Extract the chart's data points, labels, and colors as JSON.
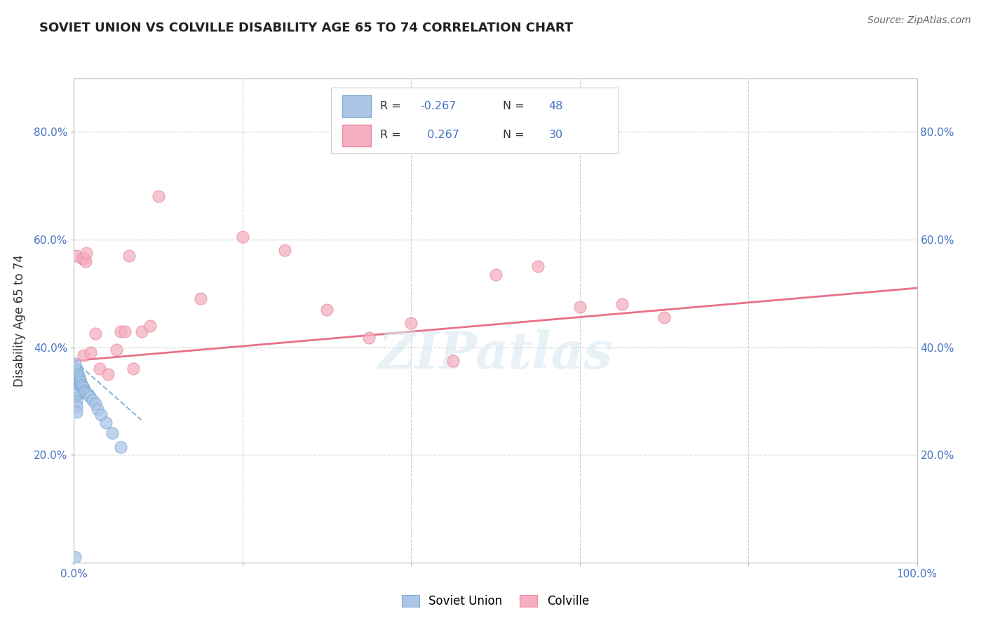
{
  "title": "SOVIET UNION VS COLVILLE DISABILITY AGE 65 TO 74 CORRELATION CHART",
  "source": "Source: ZipAtlas.com",
  "ylabel": "Disability Age 65 to 74",
  "xlim": [
    0.0,
    1.0
  ],
  "ylim": [
    0.0,
    0.9
  ],
  "soviet_color": "#adc6e8",
  "soviet_edge": "#7aaad0",
  "colville_color": "#f5afc0",
  "colville_edge": "#e888a0",
  "trendline_soviet_color": "#7aaad0",
  "trendline_colville_color": "#e8708a",
  "background_color": "#ffffff",
  "grid_color": "#cccccc",
  "label_color": "#4472c4",
  "text_color": "#333333",
  "soviet_x": [
    0.001,
    0.001,
    0.001,
    0.001,
    0.002,
    0.002,
    0.002,
    0.002,
    0.002,
    0.003,
    0.003,
    0.003,
    0.003,
    0.003,
    0.003,
    0.003,
    0.003,
    0.003,
    0.004,
    0.004,
    0.004,
    0.004,
    0.004,
    0.005,
    0.005,
    0.005,
    0.005,
    0.006,
    0.006,
    0.007,
    0.007,
    0.008,
    0.009,
    0.01,
    0.011,
    0.012,
    0.013,
    0.015,
    0.017,
    0.019,
    0.022,
    0.025,
    0.028,
    0.032,
    0.038,
    0.045,
    0.055,
    0.001
  ],
  "soviet_y": [
    0.355,
    0.335,
    0.325,
    0.01,
    0.35,
    0.34,
    0.33,
    0.32,
    0.31,
    0.36,
    0.35,
    0.34,
    0.33,
    0.32,
    0.31,
    0.3,
    0.29,
    0.28,
    0.355,
    0.345,
    0.335,
    0.325,
    0.315,
    0.35,
    0.34,
    0.33,
    0.32,
    0.345,
    0.335,
    0.34,
    0.33,
    0.335,
    0.33,
    0.328,
    0.325,
    0.32,
    0.318,
    0.315,
    0.312,
    0.308,
    0.302,
    0.295,
    0.285,
    0.275,
    0.26,
    0.24,
    0.215,
    0.37
  ],
  "colville_x": [
    0.003,
    0.01,
    0.011,
    0.012,
    0.014,
    0.015,
    0.02,
    0.025,
    0.03,
    0.04,
    0.05,
    0.055,
    0.06,
    0.065,
    0.07,
    0.08,
    0.09,
    0.1,
    0.15,
    0.2,
    0.25,
    0.3,
    0.35,
    0.4,
    0.45,
    0.5,
    0.55,
    0.6,
    0.65,
    0.7
  ],
  "colville_y": [
    0.57,
    0.565,
    0.385,
    0.565,
    0.56,
    0.575,
    0.39,
    0.425,
    0.36,
    0.35,
    0.395,
    0.43,
    0.43,
    0.57,
    0.36,
    0.43,
    0.44,
    0.68,
    0.49,
    0.605,
    0.58,
    0.47,
    0.418,
    0.445,
    0.375,
    0.535,
    0.55,
    0.475,
    0.48,
    0.455
  ],
  "soviet_trend_x": [
    0.0,
    0.08
  ],
  "soviet_trend_y": [
    0.375,
    0.265
  ],
  "colville_trend_x": [
    0.0,
    1.0
  ],
  "colville_trend_y": [
    0.375,
    0.51
  ],
  "watermark": "ZIPatlas"
}
